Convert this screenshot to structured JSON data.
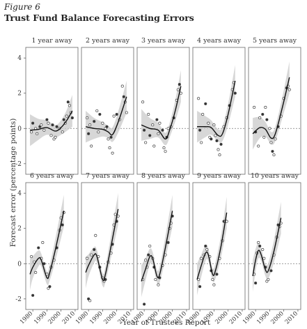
{
  "figure": {
    "label": "Figure 6",
    "title": "Trust Fund Balance Forecasting Errors"
  },
  "chart_data": {
    "type": "scatter",
    "xlabel": "Year of Trustees Report",
    "ylabel": "Forecast error (percentage points)",
    "xlim": [
      1975,
      2012
    ],
    "ylim": [
      -2.6,
      4.6
    ],
    "x_ticks": [
      1980,
      1990,
      2000,
      2010
    ],
    "x_tick_labels": [
      "1980",
      "1990",
      "2000",
      "2010"
    ],
    "y_ticks": [
      -2,
      0,
      2,
      4
    ],
    "y_tick_labels": [
      "-2",
      "0",
      "2",
      "4"
    ],
    "zero_reference_line": "dashed",
    "smooth_fit_with_confidence_band": true,
    "panels": [
      {
        "title": "1 year away",
        "points": [
          [
            1979,
            -0.2
          ],
          [
            1980,
            0.3
          ],
          [
            1982,
            0.0
          ],
          [
            1983,
            -0.3
          ],
          [
            1985,
            0.1
          ],
          [
            1986,
            0.2
          ],
          [
            1988,
            -0.1
          ],
          [
            1990,
            0.5
          ],
          [
            1991,
            0.3
          ],
          [
            1993,
            -0.4
          ],
          [
            1994,
            0.2
          ],
          [
            1995,
            -0.6
          ],
          [
            1996,
            -0.5
          ],
          [
            1997,
            0.1
          ],
          [
            1999,
            0.0
          ],
          [
            2001,
            -0.2
          ],
          [
            2002,
            0.5
          ],
          [
            2003,
            0.3
          ],
          [
            2004,
            0.7
          ],
          [
            2005,
            1.5
          ],
          [
            2006,
            1.3
          ],
          [
            2007,
            0.9
          ],
          [
            2008,
            0.6
          ]
        ],
        "fit": [
          [
            1978,
            -0.1
          ],
          [
            1984,
            -0.05
          ],
          [
            1990,
            0.05
          ],
          [
            1996,
            -0.15
          ],
          [
            2000,
            0.05
          ],
          [
            2004,
            0.45
          ],
          [
            2008,
            1.0
          ]
        ]
      },
      {
        "title": "2 years away",
        "points": [
          [
            1979,
            0.6
          ],
          [
            1980,
            -0.3
          ],
          [
            1981,
            0.2
          ],
          [
            1982,
            -1.0
          ],
          [
            1984,
            0.4
          ],
          [
            1986,
            1.0
          ],
          [
            1987,
            -0.2
          ],
          [
            1988,
            0.8
          ],
          [
            1990,
            0.3
          ],
          [
            1992,
            0.0
          ],
          [
            1993,
            0.1
          ],
          [
            1994,
            -0.6
          ],
          [
            1995,
            -1.1
          ],
          [
            1996,
            -0.5
          ],
          [
            1997,
            -1.4
          ],
          [
            1998,
            0.7
          ],
          [
            2000,
            0.8
          ],
          [
            2002,
            0.5
          ],
          [
            2004,
            2.4
          ],
          [
            2005,
            1.8
          ],
          [
            2006,
            1.5
          ],
          [
            2007,
            0.9
          ]
        ],
        "fit": [
          [
            1978,
            0.1
          ],
          [
            1984,
            0.0
          ],
          [
            1990,
            -0.05
          ],
          [
            1994,
            -0.2
          ],
          [
            1997,
            -0.35
          ],
          [
            2001,
            0.35
          ],
          [
            2007,
            1.8
          ]
        ]
      },
      {
        "title": "3 years away",
        "points": [
          [
            1979,
            1.5
          ],
          [
            1980,
            -0.1
          ],
          [
            1981,
            -0.8
          ],
          [
            1983,
            0.8
          ],
          [
            1984,
            -0.4
          ],
          [
            1986,
            0.2
          ],
          [
            1987,
            -1.0
          ],
          [
            1989,
            0.5
          ],
          [
            1990,
            -0.3
          ],
          [
            1991,
            0.3
          ],
          [
            1993,
            -0.1
          ],
          [
            1994,
            -1.1
          ],
          [
            1995,
            -1.3
          ],
          [
            1996,
            -0.5
          ],
          [
            1997,
            0.0
          ],
          [
            1999,
            0.1
          ],
          [
            2001,
            0.6
          ],
          [
            2003,
            1.6
          ],
          [
            2004,
            2.2
          ],
          [
            2005,
            2.5
          ],
          [
            2006,
            2.0
          ]
        ],
        "fit": [
          [
            1978,
            0.2
          ],
          [
            1984,
            0.0
          ],
          [
            1990,
            -0.1
          ],
          [
            1995,
            -0.6
          ],
          [
            1998,
            -0.1
          ],
          [
            2002,
            1.0
          ],
          [
            2006,
            2.4
          ]
        ]
      },
      {
        "title": "4 years away",
        "points": [
          [
            1979,
            1.7
          ],
          [
            1980,
            -0.1
          ],
          [
            1981,
            -0.8
          ],
          [
            1982,
            0.8
          ],
          [
            1984,
            1.4
          ],
          [
            1986,
            0.3
          ],
          [
            1987,
            -0.5
          ],
          [
            1988,
            -0.6
          ],
          [
            1990,
            0.2
          ],
          [
            1991,
            -0.4
          ],
          [
            1992,
            -0.7
          ],
          [
            1993,
            -1.2
          ],
          [
            1994,
            -1.5
          ],
          [
            1995,
            -0.9
          ],
          [
            1997,
            0.1
          ],
          [
            1999,
            0.6
          ],
          [
            2001,
            1.3
          ],
          [
            2003,
            2.2
          ],
          [
            2004,
            2.6
          ],
          [
            2005,
            2.0
          ]
        ],
        "fit": [
          [
            1978,
            0.1
          ],
          [
            1984,
            0.1
          ],
          [
            1988,
            0.05
          ],
          [
            1993,
            -0.4
          ],
          [
            1996,
            -0.3
          ],
          [
            2000,
            0.8
          ],
          [
            2005,
            2.7
          ]
        ]
      },
      {
        "title": "5 years away",
        "points": [
          [
            1979,
            1.2
          ],
          [
            1980,
            -0.2
          ],
          [
            1982,
            -1.0
          ],
          [
            1983,
            0.6
          ],
          [
            1985,
            0.8
          ],
          [
            1986,
            -0.5
          ],
          [
            1987,
            1.2
          ],
          [
            1988,
            0.5
          ],
          [
            1990,
            0.0
          ],
          [
            1991,
            -0.8
          ],
          [
            1992,
            -1.3
          ],
          [
            1993,
            -1.5
          ],
          [
            1994,
            -0.6
          ],
          [
            1996,
            0.1
          ],
          [
            1998,
            0.7
          ],
          [
            2000,
            1.7
          ],
          [
            2002,
            2.3
          ],
          [
            2003,
            2.4
          ],
          [
            2004,
            2.2
          ]
        ],
        "fit": [
          [
            1978,
            -0.3
          ],
          [
            1983,
            0.05
          ],
          [
            1987,
            -0.05
          ],
          [
            1991,
            -0.55
          ],
          [
            1994,
            -0.3
          ],
          [
            1999,
            1.2
          ],
          [
            2004,
            2.9
          ]
        ]
      },
      {
        "title": "6 years away",
        "points": [
          [
            1979,
            0.4
          ],
          [
            1980,
            -1.8
          ],
          [
            1981,
            0.1
          ],
          [
            1982,
            -0.5
          ],
          [
            1984,
            0.9
          ],
          [
            1986,
            0.3
          ],
          [
            1987,
            1.2
          ],
          [
            1988,
            0.0
          ],
          [
            1990,
            -0.6
          ],
          [
            1991,
            -1.4
          ],
          [
            1992,
            -1.3
          ],
          [
            1993,
            -0.2
          ],
          [
            1995,
            0.2
          ],
          [
            1997,
            0.9
          ],
          [
            1999,
            1.9
          ],
          [
            2000,
            2.6
          ],
          [
            2001,
            2.2
          ],
          [
            2002,
            2.9
          ]
        ],
        "fit": [
          [
            1978,
            -0.6
          ],
          [
            1980,
            -0.2
          ],
          [
            1984,
            0.3
          ],
          [
            1986,
            0.2
          ],
          [
            1990,
            -0.8
          ],
          [
            1992,
            -0.5
          ],
          [
            1996,
            0.8
          ],
          [
            2002,
            3.0
          ]
        ]
      },
      {
        "title": "7 years away",
        "points": [
          [
            1979,
            0.3
          ],
          [
            1980,
            -2.0
          ],
          [
            1981,
            -2.1
          ],
          [
            1982,
            0.5
          ],
          [
            1984,
            0.8
          ],
          [
            1985,
            1.6
          ],
          [
            1987,
            0.4
          ],
          [
            1988,
            -0.2
          ],
          [
            1990,
            -0.8
          ],
          [
            1991,
            -1.0
          ],
          [
            1992,
            -0.9
          ],
          [
            1994,
            0.1
          ],
          [
            1996,
            0.6
          ],
          [
            1997,
            1.1
          ],
          [
            1998,
            2.2
          ],
          [
            1999,
            2.8
          ],
          [
            2000,
            2.4
          ],
          [
            2001,
            2.7
          ]
        ],
        "fit": [
          [
            1978,
            -0.5
          ],
          [
            1980,
            -0.1
          ],
          [
            1984,
            0.5
          ],
          [
            1986,
            0.4
          ],
          [
            1990,
            -0.9
          ],
          [
            1992,
            -0.6
          ],
          [
            1996,
            1.0
          ],
          [
            2001,
            3.1
          ]
        ]
      },
      {
        "title": "8 years away",
        "points": [
          [
            1979,
            -0.9
          ],
          [
            1980,
            -2.3
          ],
          [
            1981,
            0.2
          ],
          [
            1982,
            -0.2
          ],
          [
            1983,
            0.5
          ],
          [
            1984,
            1.0
          ],
          [
            1986,
            0.3
          ],
          [
            1987,
            -0.2
          ],
          [
            1988,
            -0.9
          ],
          [
            1990,
            -1.2
          ],
          [
            1991,
            -0.8
          ],
          [
            1993,
            -0.1
          ],
          [
            1995,
            0.5
          ],
          [
            1997,
            1.2
          ],
          [
            1998,
            2.0
          ],
          [
            1999,
            2.3
          ],
          [
            2000,
            2.7
          ]
        ],
        "fit": [
          [
            1978,
            -1.0
          ],
          [
            1981,
            -0.3
          ],
          [
            1984,
            0.4
          ],
          [
            1986,
            0.3
          ],
          [
            1989,
            -0.7
          ],
          [
            1991,
            -0.6
          ],
          [
            1995,
            0.9
          ],
          [
            2000,
            3.0
          ]
        ]
      },
      {
        "title": "9 years away",
        "points": [
          [
            1979,
            -0.9
          ],
          [
            1980,
            -1.3
          ],
          [
            1981,
            0.3
          ],
          [
            1983,
            0.5
          ],
          [
            1984,
            1.0
          ],
          [
            1985,
            0.8
          ],
          [
            1987,
            0.4
          ],
          [
            1988,
            -0.4
          ],
          [
            1989,
            -0.9
          ],
          [
            1990,
            -1.2
          ],
          [
            1992,
            -0.6
          ],
          [
            1994,
            0.3
          ],
          [
            1996,
            1.3
          ],
          [
            1997,
            2.4
          ],
          [
            1998,
            2.4
          ],
          [
            1999,
            2.4
          ]
        ],
        "fit": [
          [
            1978,
            -0.9
          ],
          [
            1981,
            -0.1
          ],
          [
            1984,
            0.6
          ],
          [
            1986,
            0.5
          ],
          [
            1989,
            -0.6
          ],
          [
            1991,
            -0.4
          ],
          [
            1995,
            1.0
          ],
          [
            1999,
            2.9
          ]
        ]
      },
      {
        "title": "10 years away",
        "points": [
          [
            1979,
            -0.6
          ],
          [
            1980,
            -1.1
          ],
          [
            1981,
            0.6
          ],
          [
            1982,
            1.2
          ],
          [
            1983,
            1.0
          ],
          [
            1985,
            0.8
          ],
          [
            1986,
            0.3
          ],
          [
            1987,
            -0.2
          ],
          [
            1988,
            -1.0
          ],
          [
            1989,
            -0.9
          ],
          [
            1991,
            -0.4
          ],
          [
            1993,
            0.5
          ],
          [
            1995,
            1.5
          ],
          [
            1996,
            2.2
          ],
          [
            1997,
            2.1
          ],
          [
            1998,
            2.3
          ]
        ],
        "fit": [
          [
            1978,
            -0.7
          ],
          [
            1980,
            0.2
          ],
          [
            1982,
            0.75
          ],
          [
            1984,
            0.5
          ],
          [
            1987,
            -0.35
          ],
          [
            1989,
            -0.4
          ],
          [
            1993,
            0.7
          ],
          [
            1998,
            2.6
          ]
        ]
      }
    ]
  }
}
